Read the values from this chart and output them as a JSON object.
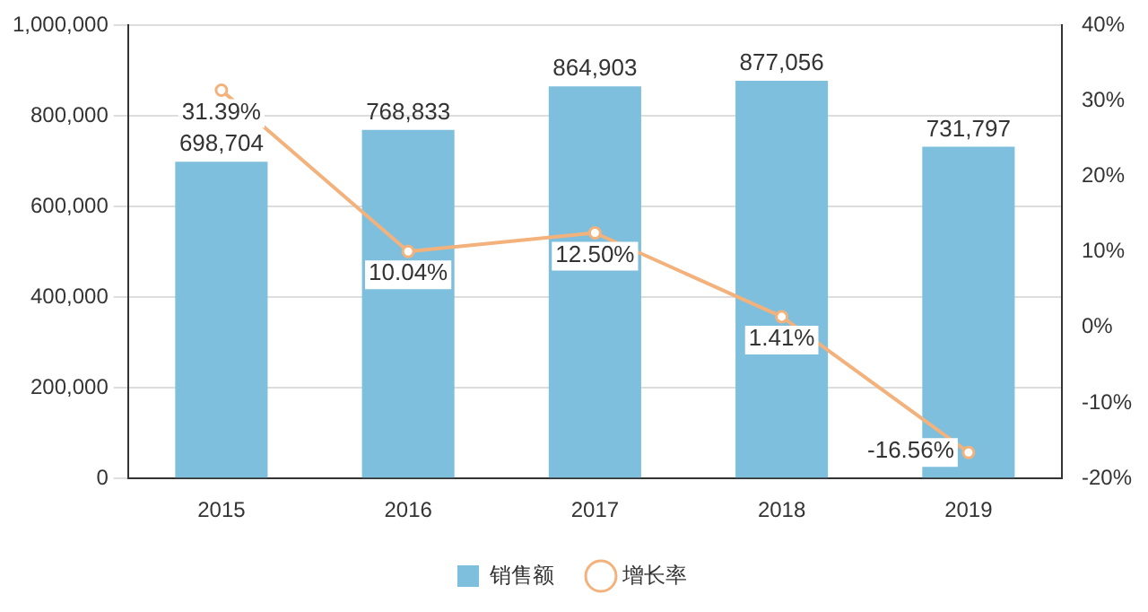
{
  "chart_data": {
    "type": "bar",
    "categories": [
      "2015",
      "2016",
      "2017",
      "2018",
      "2019"
    ],
    "series": [
      {
        "name": "销售额",
        "color": "#7ebfdd",
        "values": [
          698704,
          768833,
          864903,
          877056,
          731797
        ],
        "value_labels": [
          "698,704",
          "768,833",
          "864,903",
          "877,056",
          "731,797"
        ]
      },
      {
        "name": "增长率",
        "type": "line",
        "axis": "y2",
        "color": "#f3b27c",
        "values": [
          31.39,
          10.04,
          12.5,
          1.41,
          -16.56
        ],
        "value_labels": [
          "31.39%",
          "10.04%",
          "12.50%",
          "1.41%",
          "-16.56%"
        ]
      }
    ],
    "ylim": [
      0,
      1000000
    ],
    "yticks": [
      {
        "value": 0,
        "label": "0"
      },
      {
        "value": 200000,
        "label": "200,000"
      },
      {
        "value": 400000,
        "label": "400,000"
      },
      {
        "value": 600000,
        "label": "600,000"
      },
      {
        "value": 800000,
        "label": "800,000"
      },
      {
        "value": 1000000,
        "label": "1,000,000"
      }
    ],
    "y2lim": [
      -20,
      40
    ],
    "y2ticks": [
      {
        "value": -20,
        "label": "-20%"
      },
      {
        "value": -10,
        "label": "-10%"
      },
      {
        "value": 0,
        "label": "0%"
      },
      {
        "value": 10,
        "label": "10%"
      },
      {
        "value": 20,
        "label": "20%"
      },
      {
        "value": 30,
        "label": "30%"
      },
      {
        "value": 40,
        "label": "40%"
      }
    ],
    "grid": "y",
    "legend": "bottom",
    "marker": "circle"
  }
}
